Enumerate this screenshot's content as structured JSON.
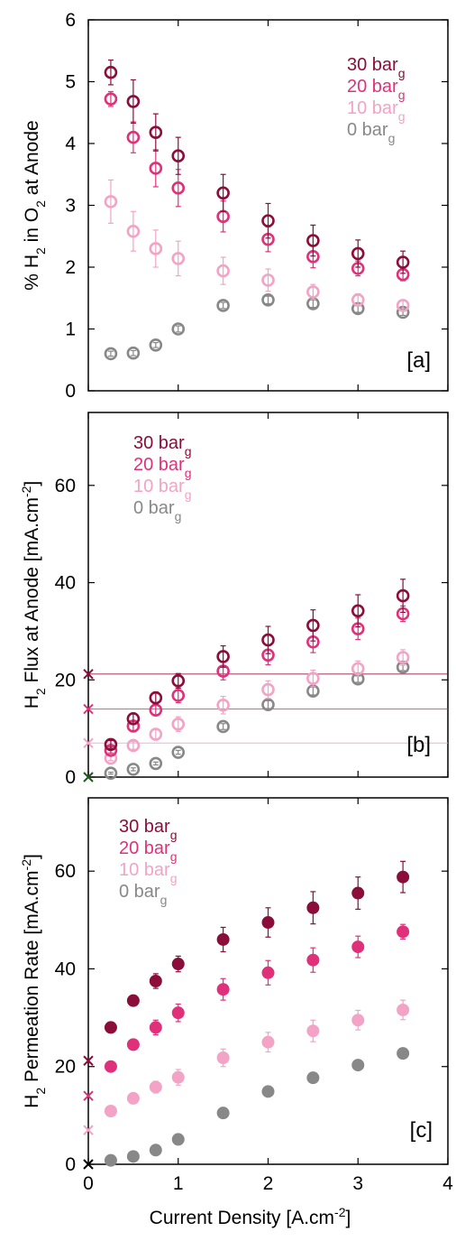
{
  "colors": {
    "30": "#8b0d3a",
    "20": "#e0307a",
    "10": "#f2a3c6",
    "0": "#888888",
    "crossDark": "#1f5a1f"
  },
  "chart_data": [
    {
      "type": "scatter",
      "panel_label": "[a]",
      "marker": "open-circle",
      "ylabel": "% H<sub>2</sub> in O<sub>2</sub> at Anode",
      "xlabel": "",
      "xlim": [
        0,
        4
      ],
      "ylim": [
        0,
        6
      ],
      "yticks": [
        0,
        1,
        2,
        3,
        4,
        5,
        6
      ],
      "xticks": [
        0,
        1,
        2,
        3,
        4
      ],
      "show_x_tick_labels": false,
      "legend_position": "top-right",
      "series": [
        {
          "name": "30 bar",
          "sub": "g",
          "key": "30",
          "x": [
            0.25,
            0.5,
            0.75,
            1.0,
            1.5,
            2.0,
            2.5,
            3.0,
            3.5
          ],
          "y": [
            5.15,
            4.68,
            4.18,
            3.8,
            3.2,
            2.75,
            2.43,
            2.22,
            2.08
          ],
          "err": [
            0.2,
            0.35,
            0.3,
            0.3,
            0.3,
            0.28,
            0.25,
            0.22,
            0.18
          ]
        },
        {
          "name": "20 bar",
          "sub": "g",
          "key": "20",
          "x": [
            0.25,
            0.5,
            0.75,
            1.0,
            1.5,
            2.0,
            2.5,
            3.0,
            3.5
          ],
          "y": [
            4.72,
            4.1,
            3.6,
            3.28,
            2.82,
            2.45,
            2.17,
            1.98,
            1.88
          ],
          "err": [
            0.12,
            0.25,
            0.3,
            0.3,
            0.25,
            0.2,
            0.18,
            0.12,
            0.1
          ]
        },
        {
          "name": "10 bar",
          "sub": "g",
          "key": "10",
          "x": [
            0.25,
            0.5,
            0.75,
            1.0,
            1.5,
            2.0,
            2.5,
            3.0,
            3.5
          ],
          "y": [
            3.06,
            2.58,
            2.3,
            2.14,
            1.94,
            1.79,
            1.6,
            1.47,
            1.38
          ],
          "err": [
            0.35,
            0.32,
            0.3,
            0.28,
            0.22,
            0.18,
            0.12,
            0.1,
            0.08
          ]
        },
        {
          "name": "0 bar",
          "sub": "g",
          "key": "0",
          "x": [
            0.25,
            0.5,
            0.75,
            1.0,
            1.5,
            2.0,
            2.5,
            3.0,
            3.5
          ],
          "y": [
            0.6,
            0.61,
            0.74,
            1.0,
            1.38,
            1.47,
            1.41,
            1.33,
            1.27
          ],
          "err": [
            0.04,
            0.04,
            0.04,
            0.05,
            0.05,
            0.06,
            0.06,
            0.06,
            0.05
          ]
        }
      ]
    },
    {
      "type": "scatter",
      "panel_label": "[b]",
      "marker": "open-circle",
      "ylabel": "H<sub>2</sub> Flux at Anode [mA.cm<sup>-2</sup>]",
      "xlabel": "",
      "xlim": [
        0,
        4
      ],
      "ylim": [
        0,
        75
      ],
      "yticks": [
        0,
        20,
        40,
        60
      ],
      "xticks": [
        0,
        1,
        2,
        3,
        4
      ],
      "show_x_tick_labels": false,
      "legend_position": "top-left",
      "hlines": [
        {
          "y": 21.2,
          "key": "30"
        },
        {
          "y": 14.0,
          "key": "20"
        },
        {
          "y": 7.0,
          "key": "10"
        }
      ],
      "axis_crosses": [
        {
          "y": 21.2,
          "key": "30"
        },
        {
          "y": 14.0,
          "key": "20"
        },
        {
          "y": 7.0,
          "key": "10"
        },
        {
          "y": 0.0,
          "key": "crossDark"
        }
      ],
      "series": [
        {
          "name": "30 bar",
          "sub": "g",
          "key": "30",
          "x": [
            0.25,
            0.5,
            0.75,
            1.0,
            1.5,
            2.0,
            2.5,
            3.0,
            3.5
          ],
          "y": [
            6.7,
            12.0,
            16.3,
            19.8,
            24.8,
            28.2,
            31.2,
            34.2,
            37.3
          ],
          "err": [
            0.8,
            1.0,
            1.2,
            1.5,
            2.2,
            2.8,
            3.2,
            3.3,
            3.4
          ]
        },
        {
          "name": "20 bar",
          "sub": "g",
          "key": "20",
          "x": [
            0.25,
            0.5,
            0.75,
            1.0,
            1.5,
            2.0,
            2.5,
            3.0,
            3.5
          ],
          "y": [
            5.5,
            10.5,
            13.8,
            16.8,
            21.8,
            25.1,
            27.8,
            30.5,
            33.6
          ],
          "err": [
            0.7,
            0.9,
            1.1,
            1.5,
            1.8,
            2.0,
            2.2,
            2.2,
            1.6
          ]
        },
        {
          "name": "10 bar",
          "sub": "g",
          "key": "10",
          "x": [
            0.25,
            0.5,
            0.75,
            1.0,
            1.5,
            2.0,
            2.5,
            3.0,
            3.5
          ],
          "y": [
            3.9,
            6.5,
            8.8,
            10.9,
            14.8,
            18.0,
            20.3,
            22.3,
            24.6
          ],
          "err": [
            0.5,
            0.8,
            1.0,
            1.5,
            1.8,
            1.8,
            1.7,
            1.6,
            1.6
          ]
        },
        {
          "name": "0 bar",
          "sub": "g",
          "key": "0",
          "x": [
            0.25,
            0.5,
            0.75,
            1.0,
            1.5,
            2.0,
            2.5,
            3.0,
            3.5
          ],
          "y": [
            0.8,
            1.6,
            2.8,
            5.1,
            10.4,
            14.9,
            17.7,
            20.2,
            22.6
          ],
          "err": [
            0.2,
            0.3,
            0.3,
            0.4,
            0.6,
            0.8,
            0.8,
            0.7,
            0.7
          ]
        }
      ]
    },
    {
      "type": "scatter",
      "panel_label": "[c]",
      "marker": "filled-circle",
      "ylabel": "H<sub>2</sub> Permeation Rate [mA.cm<sup>-2</sup>]",
      "xlabel": "Current Density [A.cm<sup>-2</sup>]",
      "xlim": [
        0,
        4
      ],
      "ylim": [
        0,
        75
      ],
      "yticks": [
        0,
        20,
        40,
        60
      ],
      "xticks": [
        0,
        1,
        2,
        3,
        4
      ],
      "show_x_tick_labels": true,
      "legend_position": "top-left",
      "axis_crosses": [
        {
          "y": 21.2,
          "key": "30"
        },
        {
          "y": 14.0,
          "key": "20"
        },
        {
          "y": 7.0,
          "key": "10"
        },
        {
          "y": 0.0,
          "key": "black"
        }
      ],
      "series": [
        {
          "name": "30 bar",
          "sub": "g",
          "key": "30",
          "x": [
            0.25,
            0.5,
            0.75,
            1.0,
            1.5,
            2.0,
            2.5,
            3.0,
            3.5
          ],
          "y": [
            28.0,
            33.5,
            37.5,
            41.0,
            46.0,
            49.5,
            52.5,
            55.5,
            58.8
          ],
          "err": [
            0.6,
            0.8,
            1.5,
            1.6,
            2.5,
            3.0,
            3.3,
            3.3,
            3.2
          ]
        },
        {
          "name": "20 bar",
          "sub": "g",
          "key": "20",
          "x": [
            0.25,
            0.5,
            0.75,
            1.0,
            1.5,
            2.0,
            2.5,
            3.0,
            3.5
          ],
          "y": [
            20.0,
            24.5,
            28.0,
            31.0,
            35.8,
            39.2,
            41.8,
            44.5,
            47.6
          ],
          "err": [
            0.6,
            0.7,
            1.5,
            1.8,
            2.2,
            2.5,
            2.5,
            2.2,
            1.5
          ]
        },
        {
          "name": "10 bar",
          "sub": "g",
          "key": "10",
          "x": [
            0.25,
            0.5,
            0.75,
            1.0,
            1.5,
            2.0,
            2.5,
            3.0,
            3.5
          ],
          "y": [
            10.9,
            13.5,
            15.8,
            17.8,
            21.8,
            25.0,
            27.3,
            29.5,
            31.6
          ],
          "err": [
            0.6,
            0.8,
            1.2,
            1.6,
            1.8,
            2.0,
            2.2,
            2.0,
            2.0
          ]
        },
        {
          "name": "0 bar",
          "sub": "g",
          "key": "0",
          "x": [
            0.25,
            0.5,
            0.75,
            1.0,
            1.5,
            2.0,
            2.5,
            3.0,
            3.5
          ],
          "y": [
            0.8,
            1.6,
            2.9,
            5.1,
            10.5,
            14.9,
            17.7,
            20.3,
            22.7
          ],
          "err": [
            0.2,
            0.2,
            0.3,
            0.4,
            0.5,
            0.5,
            0.6,
            0.6,
            0.6
          ]
        }
      ]
    }
  ]
}
